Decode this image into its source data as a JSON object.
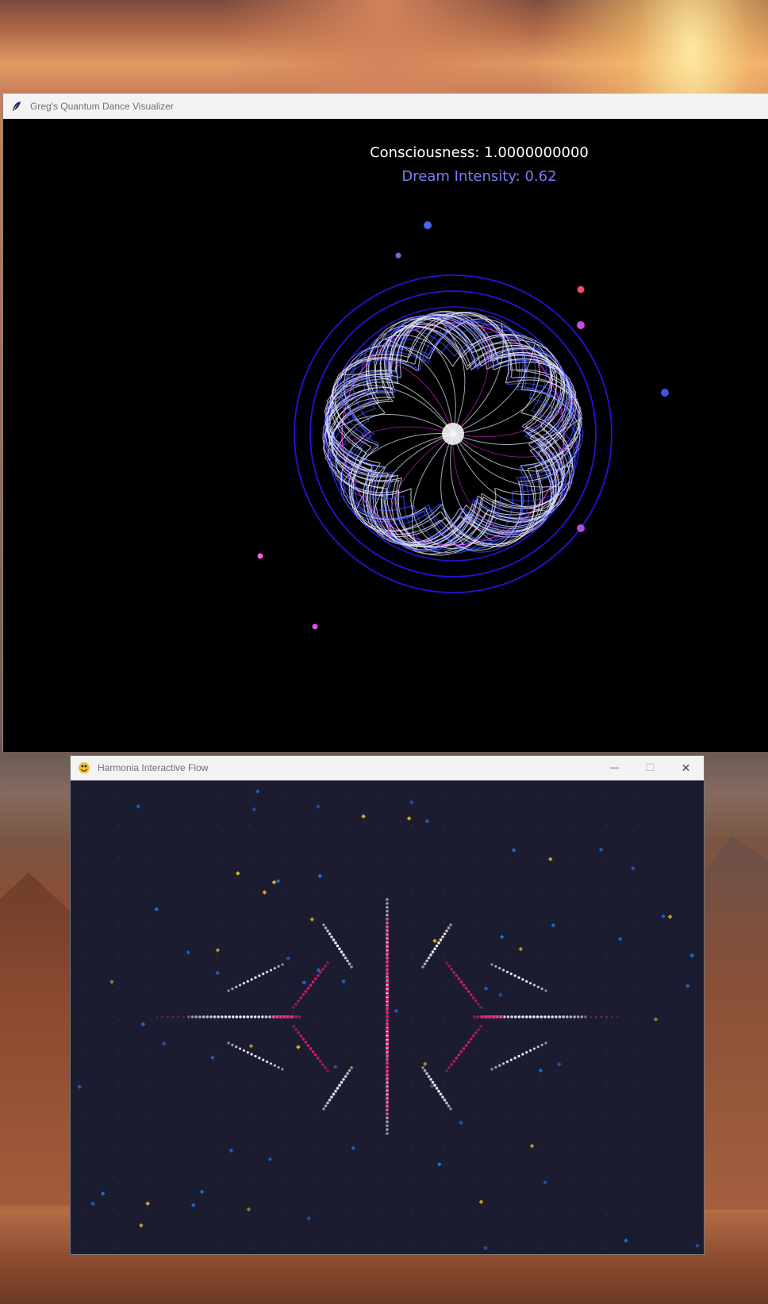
{
  "windows": {
    "quantum": {
      "title": "Greg's Quantum Dance Visualizer",
      "consciousness_label": "Consciousness: 1.0000000000",
      "dream_label": "Dream Intensity: 0.62"
    },
    "harmonia": {
      "title": "Harmonia Interactive Flow",
      "minimize_glyph": "—",
      "maximize_glyph": "☐",
      "close_glyph": "✕"
    }
  },
  "colors": {
    "quantum_bg": "#000000",
    "harmonia_bg": "#1b1c30",
    "ring_blue": "#2a10d8",
    "ring_magenta": "#c020c8",
    "petal_white": "#e8e8ff",
    "petal_blue": "#4050ff",
    "dot_pink": "#e0186a",
    "dot_white": "#f0f0f0",
    "star_blue": "#1e6fd8",
    "star_gold": "#d8b020"
  },
  "icons": [
    "feather-icon",
    "pygame-snake-icon",
    "minimize-icon",
    "maximize-icon",
    "close-icon"
  ]
}
